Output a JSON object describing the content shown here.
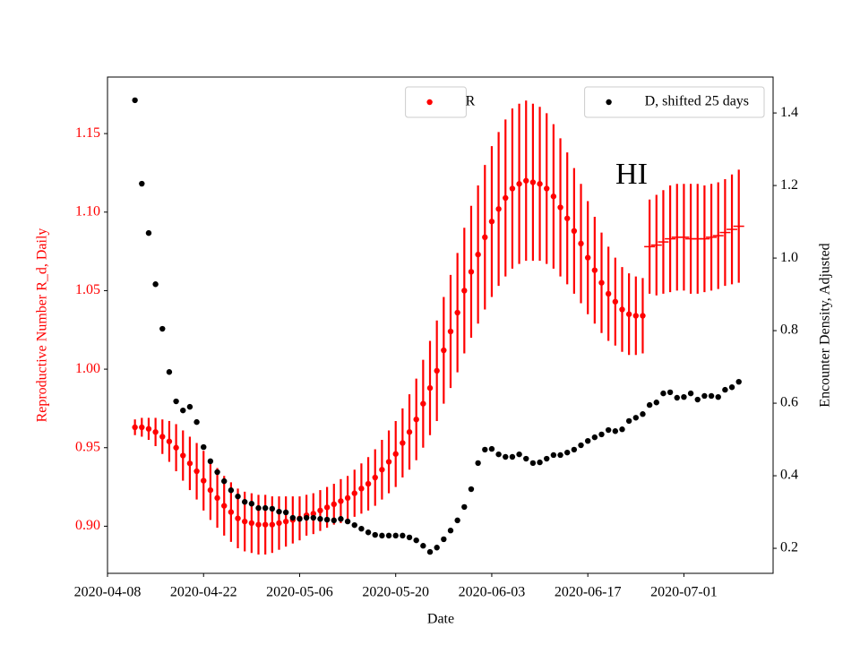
{
  "chart_data": {
    "type": "scatter",
    "annotation": "HI",
    "xlabel": "Date",
    "ylabel": "Reproductive Number R_d, Daily",
    "y2label": "Encounter Density, Adjusted",
    "ylabel_color": "red",
    "x": [
      "2020-04-12",
      "2020-04-13",
      "2020-04-14",
      "2020-04-15",
      "2020-04-16",
      "2020-04-17",
      "2020-04-18",
      "2020-04-19",
      "2020-04-20",
      "2020-04-21",
      "2020-04-22",
      "2020-04-23",
      "2020-04-24",
      "2020-04-25",
      "2020-04-26",
      "2020-04-27",
      "2020-04-28",
      "2020-04-29",
      "2020-04-30",
      "2020-05-01",
      "2020-05-02",
      "2020-05-03",
      "2020-05-04",
      "2020-05-05",
      "2020-05-06",
      "2020-05-07",
      "2020-05-08",
      "2020-05-09",
      "2020-05-10",
      "2020-05-11",
      "2020-05-12",
      "2020-05-13",
      "2020-05-14",
      "2020-05-15",
      "2020-05-16",
      "2020-05-17",
      "2020-05-18",
      "2020-05-19",
      "2020-05-20",
      "2020-05-21",
      "2020-05-22",
      "2020-05-23",
      "2020-05-24",
      "2020-05-25",
      "2020-05-26",
      "2020-05-27",
      "2020-05-28",
      "2020-05-29",
      "2020-05-30",
      "2020-05-31",
      "2020-06-01",
      "2020-06-02",
      "2020-06-03",
      "2020-06-04",
      "2020-06-05",
      "2020-06-06",
      "2020-06-07",
      "2020-06-08",
      "2020-06-09",
      "2020-06-10",
      "2020-06-11",
      "2020-06-12",
      "2020-06-13",
      "2020-06-14",
      "2020-06-15",
      "2020-06-16",
      "2020-06-17",
      "2020-06-18",
      "2020-06-19",
      "2020-06-20",
      "2020-06-21",
      "2020-06-22",
      "2020-06-23",
      "2020-06-24",
      "2020-06-25",
      "2020-06-26",
      "2020-06-27",
      "2020-06-28",
      "2020-06-29",
      "2020-06-30",
      "2020-07-01",
      "2020-07-02",
      "2020-07-03",
      "2020-07-04",
      "2020-07-05",
      "2020-07-06",
      "2020-07-07",
      "2020-07-08",
      "2020-07-09"
    ],
    "series": [
      {
        "name": "R",
        "color": "red",
        "marker": "dot",
        "legend_loc": "upper center",
        "values": [
          0.963,
          0.963,
          0.962,
          0.96,
          0.957,
          0.954,
          0.95,
          0.945,
          0.94,
          0.935,
          0.929,
          0.923,
          0.918,
          0.913,
          0.909,
          0.905,
          0.903,
          0.902,
          0.901,
          0.901,
          0.901,
          0.902,
          0.903,
          0.904,
          0.905,
          0.907,
          0.908,
          0.91,
          0.912,
          0.914,
          0.916,
          0.918,
          0.921,
          0.924,
          0.927,
          0.931,
          0.936,
          0.941,
          0.946,
          0.953,
          0.96,
          0.968,
          0.978,
          0.988,
          0.999,
          1.012,
          1.024,
          1.036,
          1.05,
          1.062,
          1.073,
          1.084,
          1.094,
          1.102,
          1.109,
          1.115,
          1.118,
          1.12,
          1.119,
          1.118,
          1.115,
          1.11,
          1.103,
          1.096,
          1.088,
          1.08,
          1.071,
          1.063,
          1.055,
          1.048,
          1.043,
          1.038,
          1.035,
          1.034,
          1.034,
          null,
          null,
          null,
          null,
          null,
          null,
          null,
          null,
          null,
          null,
          null,
          null,
          null,
          null
        ],
        "errors": [
          0.005,
          0.006,
          0.007,
          0.009,
          0.011,
          0.013,
          0.015,
          0.016,
          0.017,
          0.018,
          0.019,
          0.019,
          0.019,
          0.019,
          0.019,
          0.019,
          0.019,
          0.019,
          0.019,
          0.019,
          0.018,
          0.017,
          0.016,
          0.015,
          0.014,
          0.013,
          0.013,
          0.013,
          0.013,
          0.013,
          0.014,
          0.014,
          0.015,
          0.016,
          0.017,
          0.018,
          0.019,
          0.02,
          0.021,
          0.022,
          0.024,
          0.026,
          0.028,
          0.03,
          0.032,
          0.034,
          0.036,
          0.038,
          0.04,
          0.042,
          0.044,
          0.046,
          0.048,
          0.049,
          0.05,
          0.051,
          0.051,
          0.051,
          0.05,
          0.049,
          0.048,
          0.046,
          0.044,
          0.042,
          0.04,
          0.038,
          0.036,
          0.034,
          0.032,
          0.03,
          0.028,
          0.027,
          0.026,
          0.025,
          0.024,
          null,
          null,
          null,
          null,
          null,
          null,
          null,
          null,
          null,
          null,
          null,
          null,
          null,
          null
        ]
      },
      {
        "color": "red",
        "marker": "hline",
        "values": [
          null,
          null,
          null,
          null,
          null,
          null,
          null,
          null,
          null,
          null,
          null,
          null,
          null,
          null,
          null,
          null,
          null,
          null,
          null,
          null,
          null,
          null,
          null,
          null,
          null,
          null,
          null,
          null,
          null,
          null,
          null,
          null,
          null,
          null,
          null,
          null,
          null,
          null,
          null,
          null,
          null,
          null,
          null,
          null,
          null,
          null,
          null,
          null,
          null,
          null,
          null,
          null,
          null,
          null,
          null,
          null,
          null,
          null,
          null,
          null,
          null,
          null,
          null,
          null,
          null,
          null,
          null,
          null,
          null,
          null,
          null,
          null,
          null,
          null,
          null,
          1.078,
          1.079,
          1.081,
          1.083,
          1.084,
          1.084,
          1.083,
          1.083,
          1.083,
          1.084,
          1.085,
          1.087,
          1.089,
          1.091
        ],
        "errors": [
          null,
          null,
          null,
          null,
          null,
          null,
          null,
          null,
          null,
          null,
          null,
          null,
          null,
          null,
          null,
          null,
          null,
          null,
          null,
          null,
          null,
          null,
          null,
          null,
          null,
          null,
          null,
          null,
          null,
          null,
          null,
          null,
          null,
          null,
          null,
          null,
          null,
          null,
          null,
          null,
          null,
          null,
          null,
          null,
          null,
          null,
          null,
          null,
          null,
          null,
          null,
          null,
          null,
          null,
          null,
          null,
          null,
          null,
          null,
          null,
          null,
          null,
          null,
          null,
          null,
          null,
          null,
          null,
          null,
          null,
          null,
          null,
          null,
          null,
          null,
          0.03,
          0.032,
          0.033,
          0.034,
          0.034,
          0.034,
          0.035,
          0.035,
          0.034,
          0.034,
          0.034,
          0.034,
          0.035,
          0.036
        ]
      },
      {
        "name": "D, shifted 25 days",
        "color": "black",
        "marker": "dot",
        "axis": "y2",
        "legend_loc": "upper right",
        "values": [
          1.435,
          1.205,
          1.069,
          0.928,
          0.805,
          0.686,
          0.605,
          0.58,
          0.59,
          0.548,
          0.479,
          0.44,
          0.41,
          0.385,
          0.36,
          0.343,
          0.328,
          0.323,
          0.311,
          0.311,
          0.309,
          0.301,
          0.299,
          0.284,
          0.281,
          0.284,
          0.284,
          0.281,
          0.279,
          0.277,
          0.281,
          0.274,
          0.264,
          0.254,
          0.244,
          0.237,
          0.235,
          0.235,
          0.235,
          0.235,
          0.23,
          0.222,
          0.207,
          0.19,
          0.202,
          0.225,
          0.249,
          0.277,
          0.314,
          0.363,
          0.435,
          0.472,
          0.474,
          0.459,
          0.452,
          0.452,
          0.459,
          0.447,
          0.435,
          0.437,
          0.447,
          0.457,
          0.457,
          0.464,
          0.472,
          0.484,
          0.496,
          0.506,
          0.514,
          0.526,
          0.523,
          0.528,
          0.551,
          0.56,
          0.57,
          0.595,
          0.602,
          0.627,
          0.63,
          0.615,
          0.617,
          0.627,
          0.61,
          0.62,
          0.62,
          0.617,
          0.637,
          0.644,
          0.659
        ]
      }
    ],
    "xlim": [
      "2020-04-08",
      "2020-07-14"
    ],
    "xticks": [
      "2020-04-08",
      "2020-04-22",
      "2020-05-06",
      "2020-05-20",
      "2020-06-03",
      "2020-06-17",
      "2020-07-01"
    ],
    "ylim": [
      0.87,
      1.186
    ],
    "yticks": [
      {
        "value": 0.9,
        "label": "0.90"
      },
      0.95,
      {
        "value": 1.0,
        "label": "1.00"
      },
      1.05,
      {
        "value": 1.1,
        "label": "1.10"
      },
      1.15
    ],
    "ytick_color": "red",
    "y2lim": [
      0.131,
      1.499
    ],
    "y2ticks": [
      0.2,
      0.4,
      0.6,
      0.8,
      {
        "value": 1.0,
        "label": "1.0"
      },
      1.2,
      1.4
    ],
    "grid": false
  }
}
